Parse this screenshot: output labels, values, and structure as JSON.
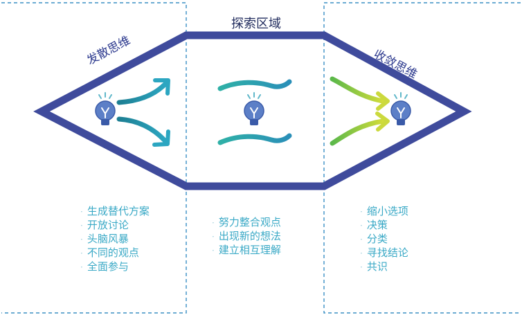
{
  "colors": {
    "dash_border": "#3a8fc4",
    "hexagon_stroke": "#3f4b9c",
    "teal": "#1f8d99",
    "blue_green": "#2fa7b4",
    "lime": "#9ccb3c",
    "bulb_fill": "#5c7fc7",
    "bulb_rays": "#5fb7c9",
    "list_text": "#3aa9c6"
  },
  "sections": {
    "divergent": {
      "title": "发散思维",
      "items": [
        "生成替代方案",
        "开放讨论",
        "头脑风暴",
        "不同的观点",
        "全面参与"
      ]
    },
    "explore": {
      "title": "探索区域",
      "items": [
        "努力整合观点",
        "出现新的想法",
        "建立相互理解"
      ]
    },
    "convergent": {
      "title": "收敛思维",
      "items": [
        "缩小选项",
        "决策",
        "分类",
        "寻找结论",
        "共识"
      ]
    }
  },
  "icons": [
    "lightbulb-icon",
    "arrow-icon",
    "wave-icon"
  ]
}
